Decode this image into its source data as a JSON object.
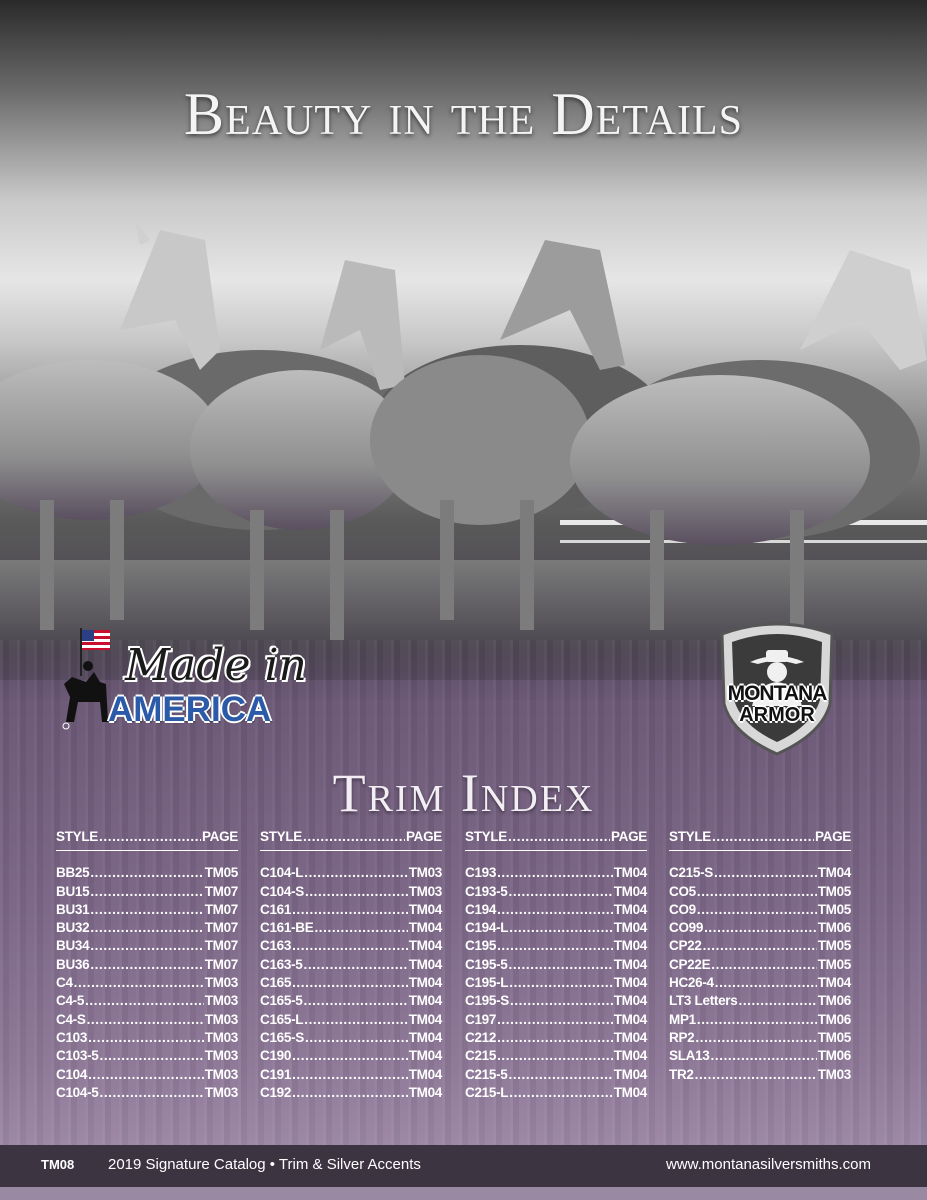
{
  "headline": "Beauty in the Details",
  "badges": {
    "made_line1": "Made in",
    "made_line2": "AMERICA",
    "armor_line1": "MONTANA",
    "armor_line2": "ARMOR"
  },
  "index_title": "Trim Index",
  "header": {
    "style": "STYLE",
    "page": "PAGE"
  },
  "columns": [
    [
      {
        "style": "BB25",
        "page": "TM05"
      },
      {
        "style": "BU15",
        "page": "TM07"
      },
      {
        "style": "BU31",
        "page": "TM07"
      },
      {
        "style": "BU32",
        "page": "TM07"
      },
      {
        "style": "BU34",
        "page": "TM07"
      },
      {
        "style": "BU36",
        "page": "TM07"
      },
      {
        "style": "C4",
        "page": "TM03"
      },
      {
        "style": "C4-5",
        "page": "TM03"
      },
      {
        "style": "C4-S",
        "page": "TM03"
      },
      {
        "style": "C103",
        "page": "TM03"
      },
      {
        "style": "C103-5",
        "page": "TM03"
      },
      {
        "style": "C104",
        "page": "TM03"
      },
      {
        "style": "C104-5",
        "page": "TM03"
      }
    ],
    [
      {
        "style": "C104-L",
        "page": "TM03"
      },
      {
        "style": "C104-S",
        "page": "TM03"
      },
      {
        "style": "C161",
        "page": "TM04"
      },
      {
        "style": "C161-BE",
        "page": "TM04"
      },
      {
        "style": "C163",
        "page": "TM04"
      },
      {
        "style": "C163-5",
        "page": "TM04"
      },
      {
        "style": "C165",
        "page": "TM04"
      },
      {
        "style": "C165-5",
        "page": "TM04"
      },
      {
        "style": "C165-L",
        "page": "TM04"
      },
      {
        "style": "C165-S",
        "page": "TM04"
      },
      {
        "style": "C190",
        "page": "TM04"
      },
      {
        "style": "C191",
        "page": "TM04"
      },
      {
        "style": "C192",
        "page": "TM04"
      }
    ],
    [
      {
        "style": "C193",
        "page": "TM04"
      },
      {
        "style": "C193-5",
        "page": "TM04"
      },
      {
        "style": "C194",
        "page": "TM04"
      },
      {
        "style": "C194-L",
        "page": "TM04"
      },
      {
        "style": "C195",
        "page": "TM04"
      },
      {
        "style": "C195-5",
        "page": "TM04"
      },
      {
        "style": "C195-L",
        "page": "TM04"
      },
      {
        "style": "C195-S",
        "page": "TM04"
      },
      {
        "style": "C197",
        "page": "TM04"
      },
      {
        "style": "C212",
        "page": "TM04"
      },
      {
        "style": "C215",
        "page": "TM04"
      },
      {
        "style": "C215-5",
        "page": "TM04"
      },
      {
        "style": "C215-L",
        "page": "TM04"
      }
    ],
    [
      {
        "style": "C215-S",
        "page": "TM04"
      },
      {
        "style": "CO5",
        "page": "TM05"
      },
      {
        "style": "CO9",
        "page": "TM05"
      },
      {
        "style": "CO99",
        "page": "TM06"
      },
      {
        "style": "CP22",
        "page": "TM05"
      },
      {
        "style": "CP22E",
        "page": "TM05"
      },
      {
        "style": "HC26-4",
        "page": "TM04"
      },
      {
        "style": "LT3 Letters",
        "page": "TM06"
      },
      {
        "style": "MP1",
        "page": "TM06"
      },
      {
        "style": "RP2",
        "page": "TM05"
      },
      {
        "style": "SLA13",
        "page": "TM06"
      },
      {
        "style": "TR2",
        "page": "TM03"
      }
    ]
  ],
  "footer": {
    "code": "TM08",
    "catalog": "2019 Signature Catalog  •  Trim & Silver Accents",
    "url": "www.montanasilversmiths.com"
  },
  "colors": {
    "purple": "#6e5a78",
    "footer": "#3d3442",
    "armor_blue": "#2a5aa8"
  }
}
